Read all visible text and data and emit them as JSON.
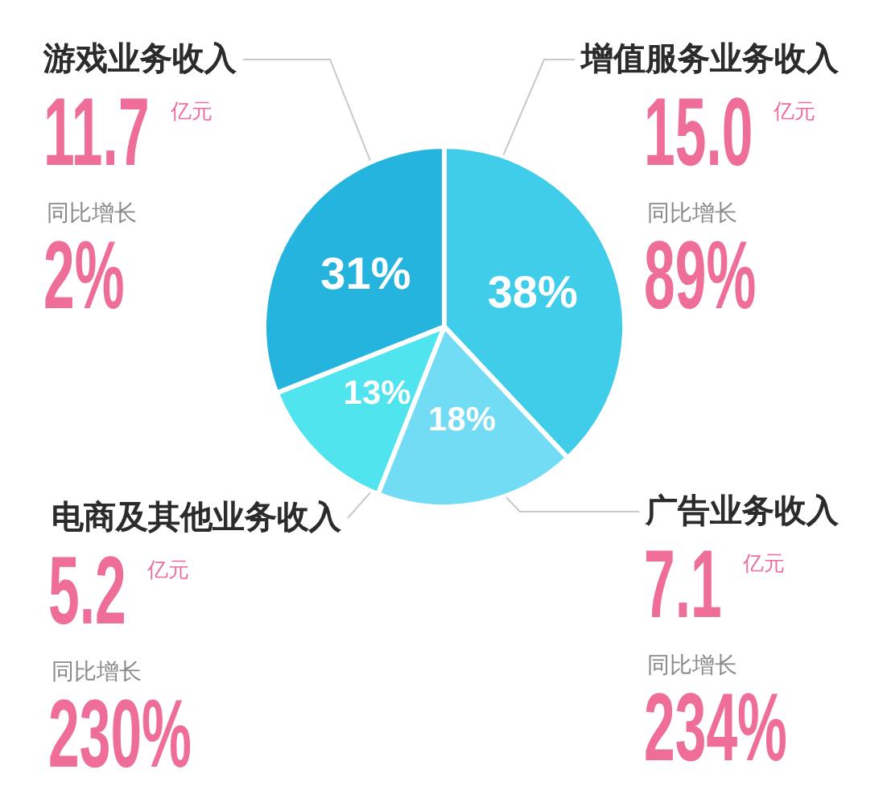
{
  "chart_data": {
    "type": "pie",
    "categories": [
      "增值服务业务收入",
      "广告业务收入",
      "电商及其他业务收入",
      "游戏业务收入"
    ],
    "values": [
      38,
      18,
      13,
      31
    ],
    "colors": [
      "#3fcdea",
      "#72dcf4",
      "#50e4ee",
      "#25b4dd"
    ],
    "value_labels": [
      "38%",
      "18%",
      "13%",
      "31%"
    ],
    "annotations": [
      "15.0",
      "亿元",
      "同比增长",
      "89%",
      "7.1",
      "亿元",
      "同比增长",
      "234%",
      "5.2",
      "亿元",
      "同比增长",
      "230%",
      "11.7",
      "亿元",
      "同比增长",
      "2%"
    ]
  }
}
